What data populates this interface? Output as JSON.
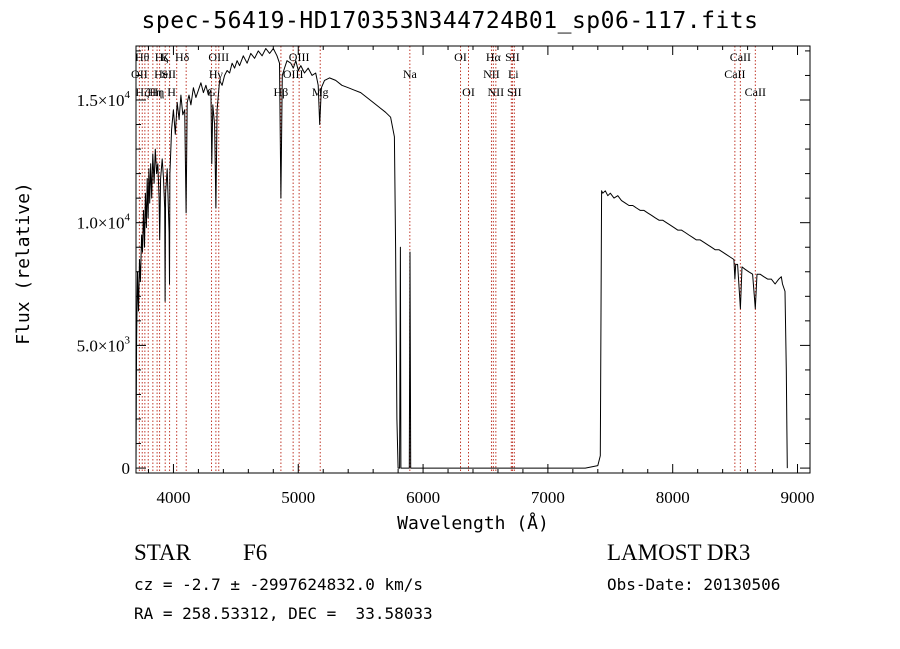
{
  "chart_data": {
    "type": "line",
    "title": "spec-56419-HD170353N344724B01_sp06-117.fits",
    "xlabel": "Wavelength (Å)",
    "ylabel": "Flux (relative)",
    "xlim": [
      3700,
      9100
    ],
    "ylim": [
      -200,
      17200
    ],
    "grid": false,
    "legend": "none",
    "x_ticks": [
      {
        "value": 4000,
        "label": "4000"
      },
      {
        "value": 5000,
        "label": "5000"
      },
      {
        "value": 6000,
        "label": "6000"
      },
      {
        "value": 7000,
        "label": "7000"
      },
      {
        "value": 8000,
        "label": "8000"
      },
      {
        "value": 9000,
        "label": "9000"
      }
    ],
    "y_ticks": [
      {
        "value": 0,
        "mant": "0",
        "exp": ""
      },
      {
        "value": 5000,
        "mant": "5.0×10",
        "exp": "3"
      },
      {
        "value": 10000,
        "mant": "1.0×10",
        "exp": "4"
      },
      {
        "value": 15000,
        "mant": "1.5×10",
        "exp": "4"
      }
    ],
    "series": [
      {
        "color": "#000000",
        "points": [
          [
            3700,
            0
          ],
          [
            3705,
            5200
          ],
          [
            3712,
            8000
          ],
          [
            3720,
            6400
          ],
          [
            3728,
            8500
          ],
          [
            3735,
            7600
          ],
          [
            3745,
            9500
          ],
          [
            3752,
            8800
          ],
          [
            3760,
            10500
          ],
          [
            3768,
            9000
          ],
          [
            3775,
            11200
          ],
          [
            3783,
            9800
          ],
          [
            3790,
            11800
          ],
          [
            3797,
            10200
          ],
          [
            3803,
            12200
          ],
          [
            3810,
            10800
          ],
          [
            3818,
            12400
          ],
          [
            3826,
            11000
          ],
          [
            3835,
            12800
          ],
          [
            3845,
            11600
          ],
          [
            3855,
            13000
          ],
          [
            3865,
            12000
          ],
          [
            3875,
            12400
          ],
          [
            3885,
            11000
          ],
          [
            3890,
            9300
          ],
          [
            3897,
            11800
          ],
          [
            3910,
            12600
          ],
          [
            3920,
            11800
          ],
          [
            3930,
            10600
          ],
          [
            3933,
            6800
          ],
          [
            3937,
            11200
          ],
          [
            3950,
            12200
          ],
          [
            3965,
            9600
          ],
          [
            3968,
            7500
          ],
          [
            3972,
            12000
          ],
          [
            3985,
            13800
          ],
          [
            4000,
            14600
          ],
          [
            4015,
            13600
          ],
          [
            4030,
            14900
          ],
          [
            4045,
            14200
          ],
          [
            4060,
            15200
          ],
          [
            4075,
            14400
          ],
          [
            4090,
            14600
          ],
          [
            4101,
            10400
          ],
          [
            4110,
            14900
          ],
          [
            4125,
            15200
          ],
          [
            4140,
            14800
          ],
          [
            4160,
            15500
          ],
          [
            4180,
            15100
          ],
          [
            4200,
            15400
          ],
          [
            4220,
            15700
          ],
          [
            4240,
            15300
          ],
          [
            4260,
            15600
          ],
          [
            4280,
            15200
          ],
          [
            4300,
            15400
          ],
          [
            4307,
            12400
          ],
          [
            4315,
            14800
          ],
          [
            4330,
            14000
          ],
          [
            4340,
            10600
          ],
          [
            4350,
            14600
          ],
          [
            4370,
            15800
          ],
          [
            4390,
            15600
          ],
          [
            4410,
            16000
          ],
          [
            4430,
            16200
          ],
          [
            4450,
            16100
          ],
          [
            4470,
            16500
          ],
          [
            4490,
            16300
          ],
          [
            4510,
            16600
          ],
          [
            4530,
            16400
          ],
          [
            4560,
            16800
          ],
          [
            4590,
            16500
          ],
          [
            4620,
            16900
          ],
          [
            4650,
            16700
          ],
          [
            4680,
            17000
          ],
          [
            4710,
            16800
          ],
          [
            4740,
            17100
          ],
          [
            4770,
            16900
          ],
          [
            4800,
            17100
          ],
          [
            4830,
            16800
          ],
          [
            4850,
            16500
          ],
          [
            4861,
            11000
          ],
          [
            4872,
            16000
          ],
          [
            4890,
            16300
          ],
          [
            4910,
            16600
          ],
          [
            4940,
            16500
          ],
          [
            4960,
            16300
          ],
          [
            4980,
            16600
          ],
          [
            5000,
            16200
          ],
          [
            5020,
            16400
          ],
          [
            5050,
            16100
          ],
          [
            5080,
            16300
          ],
          [
            5110,
            16000
          ],
          [
            5140,
            16100
          ],
          [
            5160,
            15600
          ],
          [
            5172,
            14000
          ],
          [
            5185,
            15500
          ],
          [
            5210,
            15800
          ],
          [
            5250,
            15900
          ],
          [
            5300,
            15800
          ],
          [
            5350,
            15600
          ],
          [
            5400,
            15500
          ],
          [
            5450,
            15400
          ],
          [
            5500,
            15300
          ],
          [
            5550,
            15100
          ],
          [
            5600,
            14900
          ],
          [
            5650,
            14700
          ],
          [
            5700,
            14500
          ],
          [
            5740,
            14300
          ],
          [
            5770,
            13500
          ],
          [
            5780,
            9000
          ],
          [
            5790,
            2000
          ],
          [
            5800,
            0
          ],
          [
            5812,
            0
          ],
          [
            5818,
            9000
          ],
          [
            5822,
            0
          ],
          [
            5890,
            0
          ],
          [
            5895,
            8800
          ],
          [
            5901,
            0
          ],
          [
            5960,
            0
          ],
          [
            6100,
            0
          ],
          [
            6300,
            0
          ],
          [
            6500,
            0
          ],
          [
            6700,
            0
          ],
          [
            6900,
            0
          ],
          [
            7100,
            0
          ],
          [
            7300,
            0
          ],
          [
            7400,
            100
          ],
          [
            7420,
            500
          ],
          [
            7430,
            11300
          ],
          [
            7440,
            11200
          ],
          [
            7460,
            11300
          ],
          [
            7480,
            11100
          ],
          [
            7500,
            11200
          ],
          [
            7530,
            11000
          ],
          [
            7560,
            11100
          ],
          [
            7590,
            10900
          ],
          [
            7620,
            10800
          ],
          [
            7650,
            10700
          ],
          [
            7680,
            10700
          ],
          [
            7710,
            10600
          ],
          [
            7740,
            10500
          ],
          [
            7770,
            10500
          ],
          [
            7800,
            10400
          ],
          [
            7830,
            10300
          ],
          [
            7860,
            10200
          ],
          [
            7890,
            10100
          ],
          [
            7920,
            10100
          ],
          [
            7950,
            10000
          ],
          [
            7980,
            9900
          ],
          [
            8010,
            9800
          ],
          [
            8040,
            9700
          ],
          [
            8070,
            9700
          ],
          [
            8100,
            9600
          ],
          [
            8130,
            9500
          ],
          [
            8160,
            9400
          ],
          [
            8190,
            9300
          ],
          [
            8220,
            9300
          ],
          [
            8250,
            9200
          ],
          [
            8280,
            9100
          ],
          [
            8310,
            9000
          ],
          [
            8340,
            8900
          ],
          [
            8370,
            8900
          ],
          [
            8400,
            8800
          ],
          [
            8430,
            8700
          ],
          [
            8460,
            8600
          ],
          [
            8490,
            8500
          ],
          [
            8498,
            7700
          ],
          [
            8505,
            8300
          ],
          [
            8520,
            8300
          ],
          [
            8542,
            6500
          ],
          [
            8555,
            8200
          ],
          [
            8580,
            8100
          ],
          [
            8610,
            8000
          ],
          [
            8640,
            7900
          ],
          [
            8662,
            6500
          ],
          [
            8675,
            7900
          ],
          [
            8700,
            7900
          ],
          [
            8730,
            7800
          ],
          [
            8760,
            7700
          ],
          [
            8790,
            7700
          ],
          [
            8820,
            7500
          ],
          [
            8850,
            7700
          ],
          [
            8870,
            7800
          ],
          [
            8880,
            7500
          ],
          [
            8900,
            7200
          ],
          [
            8910,
            4000
          ],
          [
            8915,
            1500
          ],
          [
            8918,
            0
          ]
        ]
      }
    ],
    "lines": [
      {
        "w": 3727,
        "label": "OII",
        "row": 1,
        "dx": 0
      },
      {
        "w": 3750,
        "label": "Hθ",
        "row": 0,
        "dx": 0
      },
      {
        "w": 3771,
        "label": "Hη",
        "row": 2,
        "dx": 10
      },
      {
        "w": 3798,
        "label": "Hζ",
        "row": 2,
        "dx": -6
      },
      {
        "w": 3835,
        "label": "Hη",
        "row": 2,
        "dx": 4
      },
      {
        "w": 3869,
        "label": "HeI",
        "row": 1,
        "dx": 6
      },
      {
        "w": 3889,
        "label": "Hζ",
        "row": 0,
        "dx": 2
      },
      {
        "w": 3934,
        "label": "K",
        "row": 0,
        "dx": 0
      },
      {
        "w": 3969,
        "label": "H",
        "row": 2,
        "dx": 2
      },
      {
        "w": 4026,
        "label": "SII",
        "row": 1,
        "dx": -8
      },
      {
        "w": 4102,
        "label": "Hδ",
        "row": 0,
        "dx": -4
      },
      {
        "w": 4305,
        "label": "G",
        "row": 2,
        "dx": 0
      },
      {
        "w": 4340,
        "label": "Hγ",
        "row": 1,
        "dx": 0
      },
      {
        "w": 4363,
        "label": "OIII",
        "row": 0,
        "dx": 0
      },
      {
        "w": 4861,
        "label": "Hβ",
        "row": 2,
        "dx": 0
      },
      {
        "w": 4959,
        "label": "OIII",
        "row": 1,
        "dx": 0
      },
      {
        "w": 5007,
        "label": "OIII",
        "row": 0,
        "dx": 0
      },
      {
        "w": 5176,
        "label": "Mg",
        "row": 2,
        "dx": 0
      },
      {
        "w": 5894,
        "label": "Na",
        "row": 1,
        "dx": 0
      },
      {
        "w": 6300,
        "label": "OI",
        "row": 0,
        "dx": 0
      },
      {
        "w": 6364,
        "label": "OI",
        "row": 2,
        "dx": 0
      },
      {
        "w": 6548,
        "label": "NII",
        "row": 1,
        "dx": 0
      },
      {
        "w": 6563,
        "label": "Hα",
        "row": 0,
        "dx": 0
      },
      {
        "w": 6583,
        "label": "NII",
        "row": 2,
        "dx": 0
      },
      {
        "w": 6707,
        "label": "Li",
        "row": 1,
        "dx": 2
      },
      {
        "w": 6716,
        "label": "SII",
        "row": 0,
        "dx": 0
      },
      {
        "w": 6731,
        "label": "SII",
        "row": 2,
        "dx": 0
      },
      {
        "w": 8498,
        "label": "CaII",
        "row": 1,
        "dx": 0
      },
      {
        "w": 8542,
        "label": "CaII",
        "row": 0,
        "dx": 0
      },
      {
        "w": 8662,
        "label": "CaII",
        "row": 2,
        "dx": 0
      }
    ]
  },
  "info": {
    "obj_class": "STAR",
    "subclass": "F6",
    "cz": "cz = -2.7 ± -2997624832.0 km/s",
    "radec": "RA = 258.53312, DEC =  33.58033",
    "survey": "LAMOST DR3",
    "obs_date": "Obs-Date: 20130506"
  }
}
